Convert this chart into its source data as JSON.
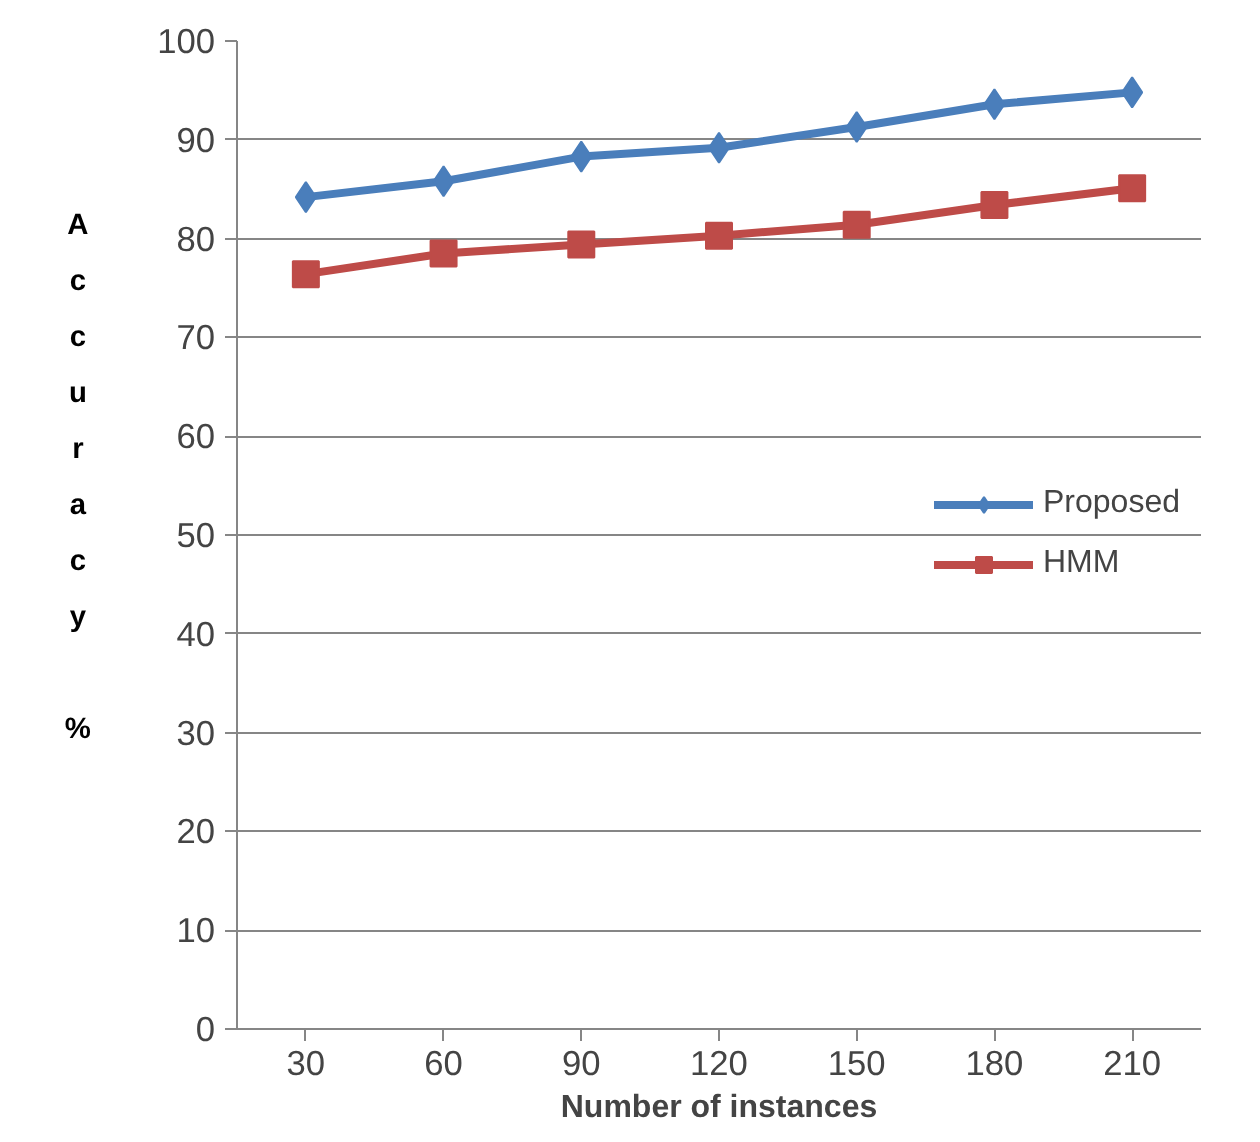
{
  "chart_data": {
    "type": "line",
    "xlabel": "Number of instances",
    "ylabel": "Accuracy %",
    "categories": [
      "30",
      "60",
      "90",
      "120",
      "150",
      "180",
      "210"
    ],
    "ylim": [
      0,
      100
    ],
    "yticks": [
      0,
      10,
      20,
      30,
      40,
      50,
      60,
      70,
      80,
      90,
      100
    ],
    "grid": "y",
    "legend": "right",
    "series": [
      {
        "name": "Proposed",
        "color": "#4a7ebb",
        "marker": "diamond",
        "values": [
          84.2,
          85.8,
          88.3,
          89.2,
          91.3,
          93.6,
          94.8
        ]
      },
      {
        "name": "HMM",
        "color": "#be4b48",
        "marker": "square",
        "values": [
          76.4,
          78.5,
          79.4,
          80.3,
          81.4,
          83.4,
          85.1
        ]
      }
    ]
  }
}
